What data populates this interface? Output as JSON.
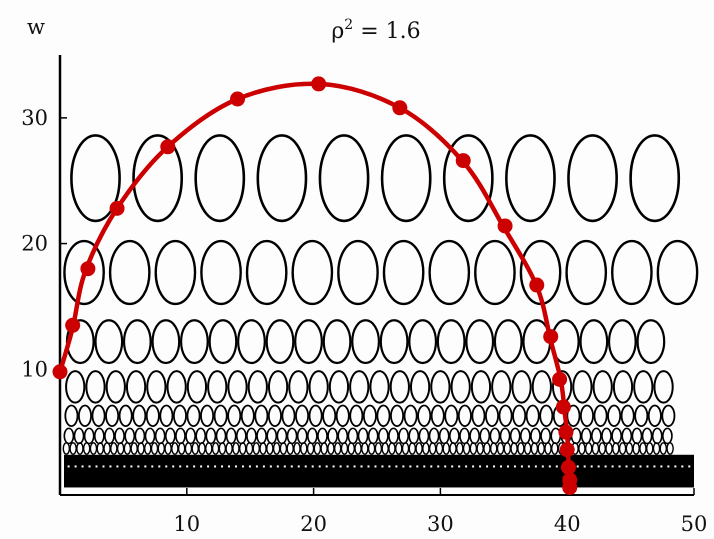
{
  "chart_data": {
    "type": "scatter",
    "title": {
      "base": "ρ",
      "exponent": "2",
      "rest": " = 1.6"
    },
    "ylabel": "w",
    "xlabel": "",
    "xlim": [
      0,
      50
    ],
    "ylim": [
      0,
      35
    ],
    "xticks": [
      10,
      20,
      30,
      40,
      50
    ],
    "yticks": [
      10,
      20,
      30
    ],
    "grid": false,
    "legend": "none",
    "colors": {
      "curve": "#cc0000",
      "ellipse": "#000000"
    },
    "ellipse_rows": [
      {
        "w": 25.2,
        "count": 10,
        "rx": 1.9,
        "ry": 3.4,
        "x_start": 2.8,
        "spacing": 4.9
      },
      {
        "w": 17.7,
        "count": 14,
        "rx": 1.55,
        "ry": 2.5,
        "x_start": 1.9,
        "spacing": 3.6
      },
      {
        "w": 12.2,
        "count": 21,
        "rx": 1.05,
        "ry": 1.7,
        "x_start": 1.6,
        "spacing": 2.25
      },
      {
        "w": 8.6,
        "count": 30,
        "rx": 0.72,
        "ry": 1.25,
        "x_start": 1.2,
        "spacing": 1.6
      },
      {
        "w": 6.3,
        "count": 45,
        "rx": 0.48,
        "ry": 0.82,
        "x_start": 0.9,
        "spacing": 1.07
      },
      {
        "w": 4.7,
        "count": 60,
        "rx": 0.36,
        "ry": 0.6,
        "x_start": 0.7,
        "spacing": 0.8
      },
      {
        "w": 3.7,
        "count": 90,
        "rx": 0.24,
        "ry": 0.45,
        "x_start": 0.5,
        "spacing": 0.535
      }
    ],
    "dense_band": {
      "w_from": 0.6,
      "w_to": 3.2
    },
    "series": [
      {
        "type": "curve",
        "points": [
          [
            0,
            9.8
          ],
          [
            1,
            13.3
          ],
          [
            2,
            17.8
          ],
          [
            4.5,
            22.8
          ],
          [
            8.5,
            27.7
          ],
          [
            14,
            31.5
          ],
          [
            20.5,
            32.7
          ],
          [
            26.8,
            30.8
          ],
          [
            31.8,
            26.5
          ],
          [
            35,
            21.3
          ],
          [
            37.6,
            16.6
          ],
          [
            38.7,
            12.3
          ],
          [
            39.5,
            9.1
          ],
          [
            39.8,
            6.6
          ],
          [
            40.0,
            4.8
          ],
          [
            40.1,
            2.6
          ],
          [
            40.2,
            0.7
          ]
        ]
      },
      {
        "type": "markers",
        "points": [
          [
            0,
            9.8
          ],
          [
            1,
            13.5
          ],
          [
            2.2,
            18.0
          ],
          [
            4.5,
            22.8
          ],
          [
            8.5,
            27.7
          ],
          [
            14,
            31.5
          ],
          [
            20.4,
            32.7
          ],
          [
            26.8,
            30.8
          ],
          [
            31.8,
            26.6
          ],
          [
            35.1,
            21.4
          ],
          [
            37.6,
            16.7
          ],
          [
            38.7,
            12.6
          ],
          [
            39.4,
            9.2
          ],
          [
            39.7,
            7.0
          ],
          [
            39.9,
            5.0
          ],
          [
            40.0,
            3.6
          ],
          [
            40.1,
            2.2
          ],
          [
            40.2,
            1.2
          ],
          [
            40.2,
            0.6
          ]
        ]
      }
    ]
  }
}
